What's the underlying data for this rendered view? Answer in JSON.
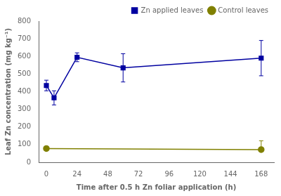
{
  "chart_data": {
    "type": "line",
    "xlabel": "Time after 0.5 h Zn foliar application (h)",
    "ylabel": "Leaf Zn concentration (mg kg⁻¹)",
    "xlim": [
      -6,
      178
    ],
    "xticks": [
      0,
      24,
      48,
      72,
      96,
      120,
      144,
      168
    ],
    "ylim": [
      0,
      800
    ],
    "yticks": [
      0,
      100,
      200,
      300,
      400,
      500,
      600,
      700,
      800
    ],
    "grid": false,
    "legend": "upper right",
    "series": [
      {
        "name": "Zn applied leaves",
        "color": "#0000a0",
        "marker": "square",
        "line_style": "solid",
        "x": [
          0,
          6,
          24,
          60,
          168
        ],
        "values": [
          435,
          365,
          595,
          535,
          590
        ],
        "yerr_upper": [
          30,
          40,
          25,
          80,
          100
        ],
        "yerr_lower": [
          30,
          40,
          25,
          80,
          100
        ]
      },
      {
        "name": "Control leaves",
        "color": "#808000",
        "marker": "circle",
        "line_style": "solid",
        "x": [
          0,
          168
        ],
        "values": [
          78,
          72
        ],
        "yerr_upper": [
          10,
          50
        ],
        "yerr_lower": [
          10,
          10
        ]
      }
    ]
  }
}
